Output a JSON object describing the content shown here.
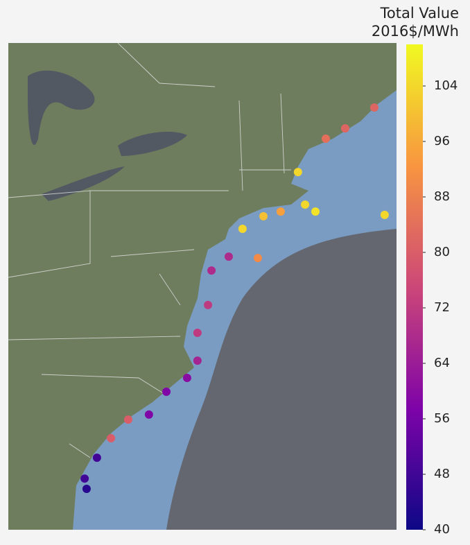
{
  "chart_data": {
    "type": "scatter",
    "colorbar_title": [
      "Total Value",
      "2016$/MWh"
    ],
    "colormap": "plasma",
    "clim": [
      40,
      110
    ],
    "cticks": [
      40,
      48,
      56,
      64,
      72,
      80,
      88,
      96,
      104
    ],
    "xlim": [
      -84.5,
      -66.5
    ],
    "ylim": [
      29.5,
      47
    ],
    "x": [
      -67.53,
      -68.88,
      -69.78,
      -71.07,
      -70.26,
      -70.74,
      -71.87,
      -72.67,
      -73.64,
      -67.05,
      -72.93,
      -74.28,
      -75.08,
      -75.24,
      -75.73,
      -75.73,
      -76.21,
      -77.17,
      -77.98,
      -78.94,
      -79.74,
      -80.39,
      -80.96,
      -80.87
    ],
    "y": [
      44.68,
      43.93,
      43.56,
      42.36,
      40.94,
      41.19,
      40.94,
      40.77,
      40.32,
      40.82,
      39.27,
      39.32,
      38.82,
      37.58,
      36.58,
      35.58,
      34.96,
      34.46,
      33.64,
      33.46,
      32.79,
      32.09,
      31.34,
      30.97
    ],
    "values": [
      82,
      82,
      84,
      104,
      106,
      104,
      94,
      100,
      104,
      104,
      90,
      68,
      68,
      72,
      72,
      66,
      60,
      58,
      58,
      80,
      80,
      48,
      48,
      44
    ]
  }
}
